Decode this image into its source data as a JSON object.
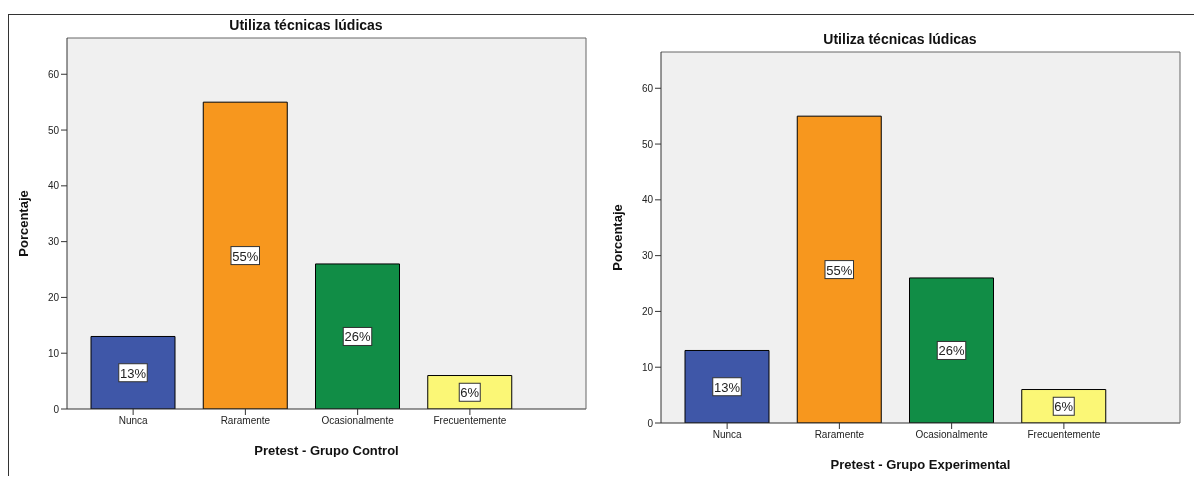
{
  "chart_data": [
    {
      "type": "bar",
      "title": "Utiliza técnicas lúdicas",
      "xlabel": "Pretest - Grupo Control",
      "ylabel": "Porcentaje",
      "categories": [
        "Nunca",
        "Raramente",
        "Ocasionalmente",
        "Frecuentemente"
      ],
      "values": [
        13,
        55,
        26,
        6
      ],
      "colors": [
        "#3f57a8",
        "#f7971e",
        "#118d46",
        "#fbf776"
      ],
      "value_labels": [
        "13%",
        "55%",
        "26%",
        "6%"
      ],
      "ylim": [
        0,
        66.5
      ],
      "yticks": [
        0,
        10,
        20,
        30,
        40,
        50,
        60
      ],
      "grid": false,
      "legend": false
    },
    {
      "type": "bar",
      "title": "Utiliza técnicas lúdicas",
      "xlabel": "Pretest - Grupo Experimental",
      "ylabel": "Porcentaje",
      "categories": [
        "Nunca",
        "Raramente",
        "Ocasionalmente",
        "Frecuentemente"
      ],
      "values": [
        13,
        55,
        26,
        6
      ],
      "colors": [
        "#3f57a8",
        "#f7971e",
        "#118d46",
        "#fbf776"
      ],
      "value_labels": [
        "13%",
        "55%",
        "26%",
        "6%"
      ],
      "ylim": [
        0,
        66.5
      ],
      "yticks": [
        0,
        10,
        20,
        30,
        40,
        50,
        60
      ],
      "grid": false,
      "legend": false
    }
  ]
}
